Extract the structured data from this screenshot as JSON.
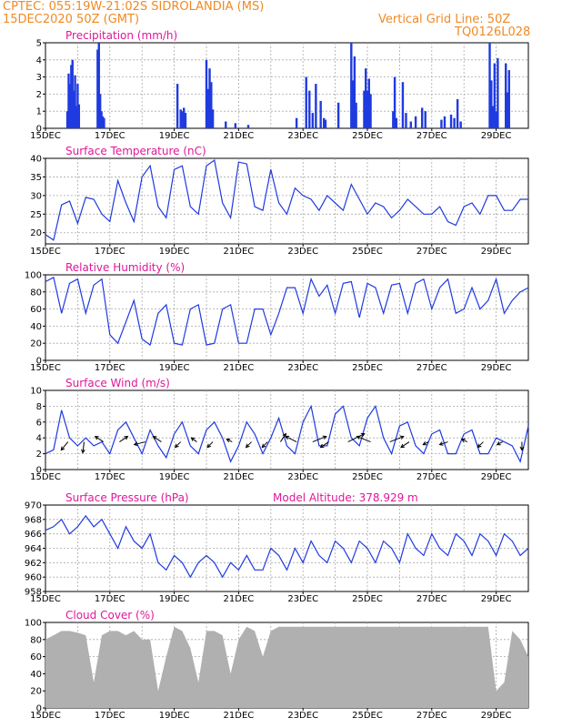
{
  "header": {
    "line1": "CPTEC:   055:19W-21:02S   SIDROLANDIA (MS)",
    "line2": "15DEC2020 50Z (GMT)",
    "vgrid": "Vertical Grid Line: 50Z",
    "code": "TQ0126L028",
    "altitude": "Model Altitude: 378.929 m"
  },
  "colors": {
    "header": "#f08a24",
    "title": "#e0179a",
    "series": "#1f3ae0",
    "bars": "#1f3ae0",
    "cloud": "#b0b0b0",
    "wind_arrow": "#000000",
    "grid": "#a9a9a9"
  },
  "x_tick_labels": [
    "15DEC",
    "17DEC",
    "19DEC",
    "21DEC",
    "23DEC",
    "25DEC",
    "27DEC",
    "29DEC"
  ],
  "chart_data": [
    {
      "type": "bar",
      "title": "Precipitation (mm/h)",
      "ylim": [
        0,
        5
      ],
      "yticks": [
        "0",
        "1",
        "2",
        "3",
        "4",
        "5"
      ],
      "x_days": [
        0.68,
        0.72,
        0.76,
        0.8,
        0.84,
        0.88,
        0.92,
        0.96,
        1.0,
        1.04,
        1.62,
        1.66,
        1.7,
        1.74,
        1.78,
        1.82,
        4.1,
        4.2,
        4.25,
        4.3,
        4.35,
        5.0,
        5.05,
        5.1,
        5.15,
        5.2,
        5.6,
        5.9,
        6.3,
        7.8,
        8.1,
        8.2,
        8.3,
        8.4,
        8.55,
        8.65,
        8.7,
        9.1,
        9.5,
        9.55,
        9.6,
        9.65,
        9.9,
        9.95,
        10.0,
        10.05,
        10.1,
        10.8,
        10.85,
        10.9,
        11.1,
        11.2,
        11.35,
        11.5,
        11.7,
        11.8,
        12.3,
        12.4,
        12.6,
        12.7,
        12.8,
        12.9,
        13.8,
        13.85,
        13.9,
        13.95,
        14.0,
        14.05,
        14.3,
        14.35,
        14.4
      ],
      "values": [
        1.0,
        3.2,
        2.6,
        3.7,
        4.0,
        2.2,
        3.1,
        1.3,
        2.6,
        1.4,
        4.6,
        5.0,
        2.0,
        1.0,
        0.7,
        0.6,
        2.6,
        1.1,
        1.0,
        1.2,
        0.9,
        4.0,
        2.3,
        3.5,
        2.7,
        1.1,
        0.4,
        0.3,
        0.2,
        0.6,
        3.0,
        2.2,
        0.9,
        2.6,
        1.6,
        0.6,
        0.5,
        1.5,
        5.0,
        2.8,
        4.2,
        1.5,
        2.2,
        3.5,
        2.2,
        2.9,
        2.0,
        1.0,
        3.0,
        0.6,
        2.7,
        0.9,
        0.4,
        0.7,
        1.2,
        1.0,
        0.5,
        0.7,
        0.8,
        0.6,
        1.7,
        0.4,
        5.0,
        2.8,
        1.3,
        3.8,
        1.0,
        4.1,
        3.8,
        2.1,
        3.4
      ]
    },
    {
      "type": "line",
      "title": "Surface Temperature (nC)",
      "ylim": [
        17,
        40
      ],
      "yticks": [
        "20",
        "25",
        "30",
        "35",
        "40"
      ],
      "x_days": [
        0,
        0.25,
        0.5,
        0.75,
        1.0,
        1.25,
        1.5,
        1.75,
        2.0,
        2.25,
        2.5,
        2.75,
        3.0,
        3.25,
        3.5,
        3.75,
        4.0,
        4.25,
        4.5,
        4.75,
        5.0,
        5.25,
        5.5,
        5.75,
        6.0,
        6.25,
        6.5,
        6.75,
        7.0,
        7.25,
        7.5,
        7.75,
        8.0,
        8.25,
        8.5,
        8.75,
        9.0,
        9.25,
        9.5,
        9.75,
        10.0,
        10.25,
        10.5,
        10.75,
        11.0,
        11.25,
        11.5,
        11.75,
        12.0,
        12.25,
        12.5,
        12.75,
        13.0,
        13.25,
        13.5,
        13.75,
        14.0,
        14.25,
        14.5,
        14.75,
        15.0
      ],
      "values": [
        19.5,
        18,
        27.5,
        28.5,
        22.5,
        29.5,
        29,
        25,
        23,
        34,
        28,
        23,
        35,
        38,
        27,
        24,
        37,
        38,
        27,
        25,
        38,
        39.5,
        28,
        24,
        39,
        38.5,
        27,
        26,
        37,
        28,
        25,
        32,
        30,
        29,
        26,
        30,
        28,
        26,
        33,
        29,
        25,
        28,
        27,
        24,
        26,
        29,
        27,
        25,
        25,
        27,
        23,
        22,
        27,
        28,
        25,
        30,
        30,
        26,
        26,
        29,
        29
      ]
    },
    {
      "type": "line",
      "title": "Relative Humidity (%)",
      "ylim": [
        0,
        100
      ],
      "yticks": [
        "0",
        "20",
        "40",
        "60",
        "80",
        "100"
      ],
      "x_days": [
        0,
        0.25,
        0.5,
        0.75,
        1.0,
        1.25,
        1.5,
        1.75,
        2.0,
        2.25,
        2.5,
        2.75,
        3.0,
        3.25,
        3.5,
        3.75,
        4.0,
        4.25,
        4.5,
        4.75,
        5.0,
        5.25,
        5.5,
        5.75,
        6.0,
        6.25,
        6.5,
        6.75,
        7.0,
        7.25,
        7.5,
        7.75,
        8.0,
        8.25,
        8.5,
        8.75,
        9.0,
        9.25,
        9.5,
        9.75,
        10.0,
        10.25,
        10.5,
        10.75,
        11.0,
        11.25,
        11.5,
        11.75,
        12.0,
        12.25,
        12.5,
        12.75,
        13.0,
        13.25,
        13.5,
        13.75,
        14.0,
        14.25,
        14.5,
        14.75,
        15.0
      ],
      "values": [
        92,
        97,
        55,
        90,
        95,
        55,
        88,
        95,
        30,
        20,
        45,
        70,
        25,
        18,
        55,
        65,
        20,
        18,
        60,
        65,
        18,
        20,
        60,
        65,
        20,
        20,
        60,
        60,
        30,
        55,
        85,
        85,
        55,
        95,
        75,
        88,
        55,
        90,
        92,
        50,
        90,
        85,
        55,
        88,
        90,
        55,
        90,
        95,
        60,
        85,
        95,
        55,
        60,
        85,
        60,
        70,
        95,
        55,
        70,
        80,
        85
      ]
    },
    {
      "type": "line",
      "title": "Surface Wind (m/s)",
      "ylim": [
        0,
        10
      ],
      "yticks": [
        "0",
        "2",
        "4",
        "6",
        "8",
        "10"
      ],
      "x_days": [
        0,
        0.25,
        0.5,
        0.75,
        1.0,
        1.25,
        1.5,
        1.75,
        2.0,
        2.25,
        2.5,
        2.75,
        3.0,
        3.25,
        3.5,
        3.75,
        4.0,
        4.25,
        4.5,
        4.75,
        5.0,
        5.25,
        5.5,
        5.75,
        6.0,
        6.25,
        6.5,
        6.75,
        7.0,
        7.25,
        7.5,
        7.75,
        8.0,
        8.25,
        8.5,
        8.75,
        9.0,
        9.25,
        9.5,
        9.75,
        10.0,
        10.25,
        10.5,
        10.75,
        11.0,
        11.25,
        11.5,
        11.75,
        12.0,
        12.25,
        12.5,
        12.75,
        13.0,
        13.25,
        13.5,
        13.75,
        14.0,
        14.25,
        14.5,
        14.75,
        15.0
      ],
      "values": [
        2,
        2.5,
        7.5,
        4,
        3,
        4,
        3,
        3.5,
        2,
        5,
        6,
        4,
        2,
        5,
        3,
        1.5,
        4.5,
        6,
        3,
        2,
        5,
        6,
        4,
        1,
        3,
        6,
        4.5,
        2,
        4,
        6.5,
        3,
        2,
        6,
        8,
        3,
        3,
        7,
        8,
        4,
        3,
        6.5,
        8,
        4,
        2,
        5.5,
        6,
        3,
        2,
        4.5,
        5,
        2,
        2,
        4.5,
        5,
        2,
        2,
        4,
        3.5,
        3,
        1,
        5.5
      ],
      "arrows": [
        {
          "day": 0.7,
          "u": -2.5,
          "v": -3
        },
        {
          "day": 1.2,
          "u": -0.5,
          "v": -4
        },
        {
          "day": 1.8,
          "u": -3,
          "v": 2
        },
        {
          "day": 2.3,
          "u": 3,
          "v": 2
        },
        {
          "day": 3.1,
          "u": -4,
          "v": -1
        },
        {
          "day": 3.6,
          "u": -3,
          "v": 2
        },
        {
          "day": 4.2,
          "u": -2,
          "v": -2
        },
        {
          "day": 4.7,
          "u": -2,
          "v": 1.5
        },
        {
          "day": 5.2,
          "u": -2,
          "v": -2
        },
        {
          "day": 5.8,
          "u": -2,
          "v": 1
        },
        {
          "day": 6.4,
          "u": -2,
          "v": -2
        },
        {
          "day": 6.9,
          "u": -2,
          "v": -2
        },
        {
          "day": 7.3,
          "u": 2,
          "v": 3
        },
        {
          "day": 7.8,
          "u": -4,
          "v": 2
        },
        {
          "day": 8.3,
          "u": 5,
          "v": 2
        },
        {
          "day": 8.8,
          "u": -3,
          "v": -2
        },
        {
          "day": 9.4,
          "u": 6,
          "v": 3
        },
        {
          "day": 10.1,
          "u": -5,
          "v": 2
        },
        {
          "day": 10.7,
          "u": 5,
          "v": 2
        },
        {
          "day": 11.3,
          "u": -3,
          "v": -2
        },
        {
          "day": 11.9,
          "u": -2,
          "v": -1
        },
        {
          "day": 12.5,
          "u": -3,
          "v": -1
        },
        {
          "day": 13.1,
          "u": -2,
          "v": 1
        },
        {
          "day": 13.6,
          "u": -2,
          "v": -2
        },
        {
          "day": 14.2,
          "u": -2,
          "v": -1
        },
        {
          "day": 14.8,
          "u": 0,
          "v": -3
        }
      ]
    },
    {
      "type": "line",
      "title": "Surface Pressure (hPa)",
      "ylim": [
        958,
        970
      ],
      "yticks": [
        "958",
        "960",
        "962",
        "964",
        "966",
        "968",
        "970"
      ],
      "x_days": [
        0,
        0.25,
        0.5,
        0.75,
        1.0,
        1.25,
        1.5,
        1.75,
        2.0,
        2.25,
        2.5,
        2.75,
        3.0,
        3.25,
        3.5,
        3.75,
        4.0,
        4.25,
        4.5,
        4.75,
        5.0,
        5.25,
        5.5,
        5.75,
        6.0,
        6.25,
        6.5,
        6.75,
        7.0,
        7.25,
        7.5,
        7.75,
        8.0,
        8.25,
        8.5,
        8.75,
        9.0,
        9.25,
        9.5,
        9.75,
        10.0,
        10.25,
        10.5,
        10.75,
        11.0,
        11.25,
        11.5,
        11.75,
        12.0,
        12.25,
        12.5,
        12.75,
        13.0,
        13.25,
        13.5,
        13.75,
        14.0,
        14.25,
        14.5,
        14.75,
        15.0
      ],
      "values": [
        966.5,
        967,
        968,
        966,
        967,
        968.5,
        967,
        968,
        966,
        964,
        967,
        965,
        964,
        966,
        962,
        961,
        963,
        962,
        960,
        962,
        963,
        962,
        960,
        962,
        961,
        963,
        961,
        961,
        964,
        963,
        961,
        964,
        962,
        965,
        963,
        962,
        965,
        964,
        962,
        965,
        964,
        962,
        965,
        964,
        962,
        966,
        964,
        963,
        966,
        964,
        963,
        966,
        965,
        963,
        966,
        965,
        963,
        966,
        965,
        963,
        964
      ]
    },
    {
      "type": "area",
      "title": "Cloud Cover (%)",
      "ylim": [
        0,
        100
      ],
      "yticks": [
        "0",
        "20",
        "40",
        "60",
        "80",
        "100"
      ],
      "x_days": [
        0,
        0.25,
        0.5,
        0.75,
        1.0,
        1.25,
        1.5,
        1.75,
        2.0,
        2.25,
        2.5,
        2.75,
        3.0,
        3.25,
        3.5,
        3.75,
        4.0,
        4.25,
        4.5,
        4.75,
        5.0,
        5.25,
        5.5,
        5.75,
        6.0,
        6.25,
        6.5,
        6.75,
        7.0,
        7.25,
        7.5,
        7.75,
        8.0,
        8.25,
        8.5,
        8.75,
        9.0,
        9.25,
        9.5,
        9.75,
        10.0,
        10.25,
        10.5,
        10.75,
        11.0,
        11.25,
        11.5,
        11.75,
        12.0,
        12.25,
        12.5,
        12.75,
        13.0,
        13.25,
        13.5,
        13.75,
        14.0,
        14.25,
        14.5,
        14.75,
        15.0
      ],
      "values": [
        80,
        85,
        90,
        90,
        88,
        85,
        30,
        85,
        90,
        90,
        85,
        90,
        80,
        80,
        20,
        60,
        95,
        90,
        70,
        30,
        90,
        90,
        85,
        40,
        80,
        95,
        90,
        60,
        90,
        95,
        95,
        95,
        95,
        95,
        95,
        95,
        95,
        95,
        95,
        95,
        95,
        95,
        95,
        95,
        95,
        95,
        95,
        95,
        95,
        95,
        95,
        95,
        95,
        95,
        95,
        95,
        20,
        30,
        90,
        80,
        60
      ]
    }
  ]
}
